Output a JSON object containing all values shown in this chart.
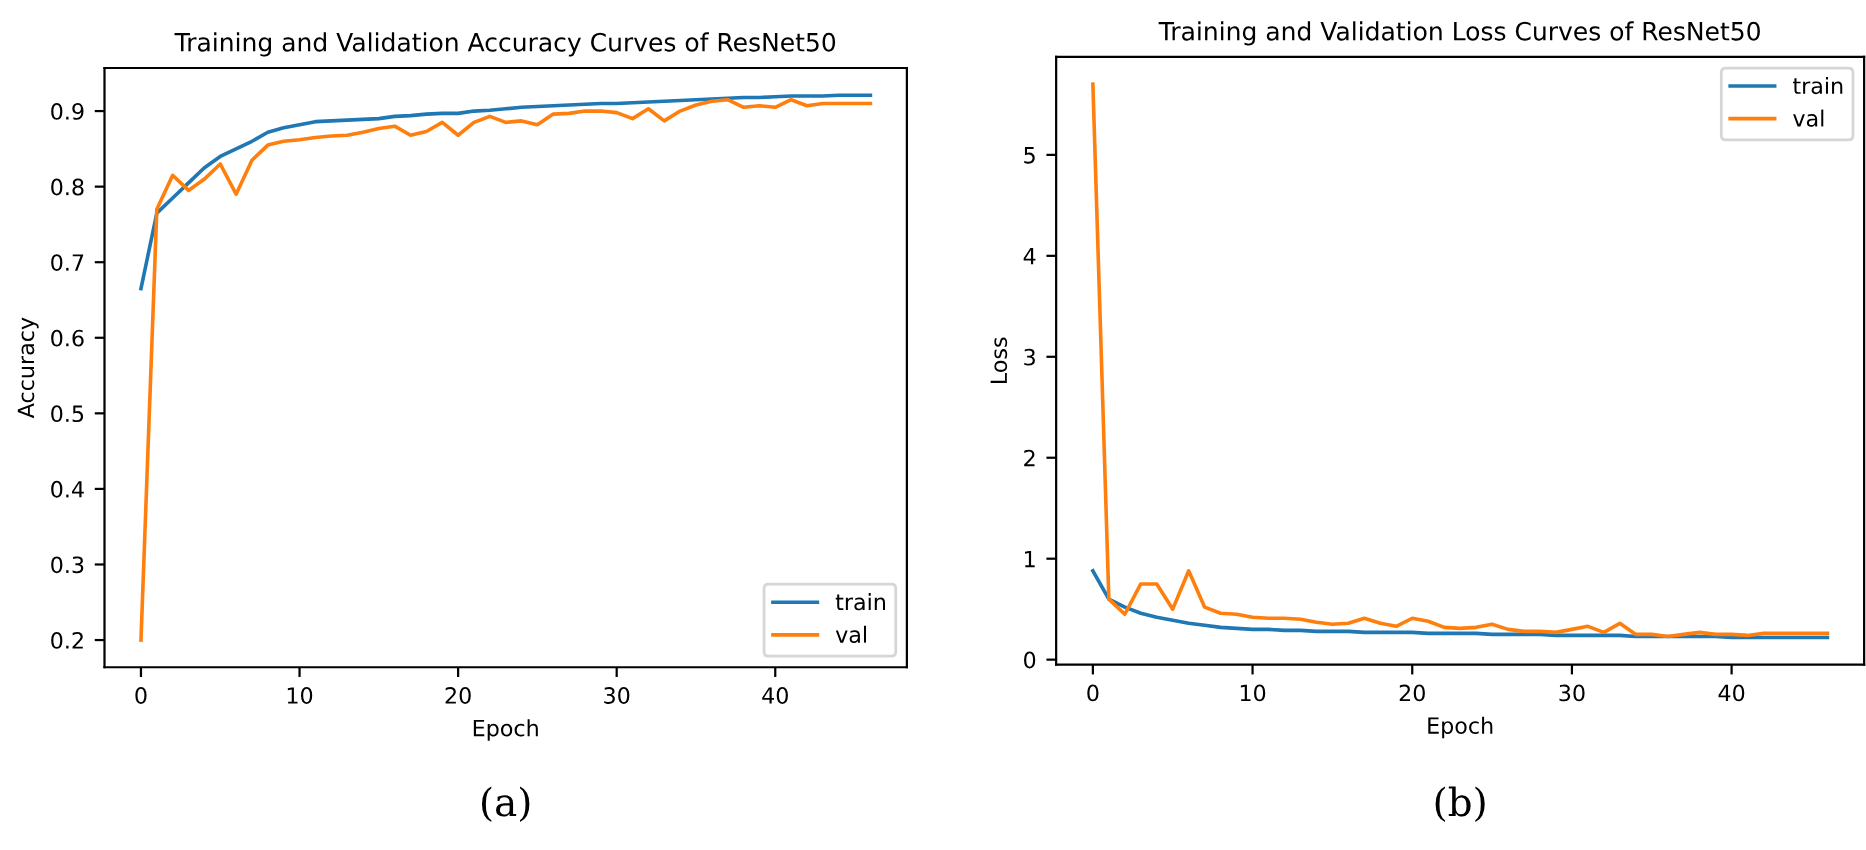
{
  "chart_data": [
    {
      "type": "line",
      "title": "Training and Validation Accuracy Curves of ResNet50",
      "xlabel": "Epoch",
      "ylabel": "Accuracy",
      "annotations": [
        "(a)"
      ],
      "x": [
        0,
        1,
        2,
        3,
        4,
        5,
        6,
        7,
        8,
        9,
        10,
        11,
        12,
        13,
        14,
        15,
        16,
        17,
        18,
        19,
        20,
        21,
        22,
        23,
        24,
        25,
        26,
        27,
        28,
        29,
        30,
        31,
        32,
        33,
        34,
        35,
        36,
        37,
        38,
        39,
        40,
        41,
        42,
        43,
        44,
        45,
        46
      ],
      "series": [
        {
          "name": "train",
          "color": "#1f77b4",
          "values": [
            0.665,
            0.765,
            0.785,
            0.805,
            0.825,
            0.84,
            0.85,
            0.86,
            0.872,
            0.878,
            0.882,
            0.886,
            0.887,
            0.888,
            0.889,
            0.89,
            0.893,
            0.894,
            0.896,
            0.897,
            0.897,
            0.9,
            0.901,
            0.903,
            0.905,
            0.906,
            0.907,
            0.908,
            0.909,
            0.91,
            0.91,
            0.911,
            0.912,
            0.913,
            0.914,
            0.915,
            0.916,
            0.917,
            0.918,
            0.918,
            0.919,
            0.92,
            0.92,
            0.92,
            0.921,
            0.921,
            0.921
          ]
        },
        {
          "name": "val",
          "color": "#ff7f0e",
          "values": [
            0.2,
            0.77,
            0.815,
            0.795,
            0.81,
            0.83,
            0.79,
            0.835,
            0.855,
            0.86,
            0.862,
            0.865,
            0.867,
            0.868,
            0.872,
            0.877,
            0.88,
            0.868,
            0.873,
            0.885,
            0.868,
            0.885,
            0.893,
            0.885,
            0.887,
            0.882,
            0.896,
            0.897,
            0.9,
            0.9,
            0.898,
            0.89,
            0.903,
            0.887,
            0.9,
            0.908,
            0.913,
            0.915,
            0.905,
            0.907,
            0.905,
            0.915,
            0.907,
            0.91,
            0.91,
            0.91,
            0.91
          ]
        }
      ],
      "xlim": [
        -2.3,
        48.3
      ],
      "xticks": [
        0,
        10,
        20,
        30,
        40
      ],
      "ylim": [
        0.164,
        0.957
      ],
      "yticks": [
        0.2,
        0.3,
        0.4,
        0.5,
        0.6,
        0.7,
        0.8,
        0.9
      ],
      "legend": "lower right",
      "grid": false
    },
    {
      "type": "line",
      "title": "Training and Validation Loss Curves of ResNet50",
      "xlabel": "Epoch",
      "ylabel": "Loss",
      "annotations": [
        "(b)"
      ],
      "x": [
        0,
        1,
        2,
        3,
        4,
        5,
        6,
        7,
        8,
        9,
        10,
        11,
        12,
        13,
        14,
        15,
        16,
        17,
        18,
        19,
        20,
        21,
        22,
        23,
        24,
        25,
        26,
        27,
        28,
        29,
        30,
        31,
        32,
        33,
        34,
        35,
        36,
        37,
        38,
        39,
        40,
        41,
        42,
        43,
        44,
        45,
        46
      ],
      "series": [
        {
          "name": "train",
          "color": "#1f77b4",
          "values": [
            0.88,
            0.6,
            0.52,
            0.46,
            0.42,
            0.39,
            0.36,
            0.34,
            0.32,
            0.31,
            0.3,
            0.3,
            0.29,
            0.29,
            0.28,
            0.28,
            0.28,
            0.27,
            0.27,
            0.27,
            0.27,
            0.26,
            0.26,
            0.26,
            0.26,
            0.25,
            0.25,
            0.25,
            0.25,
            0.24,
            0.24,
            0.24,
            0.24,
            0.24,
            0.23,
            0.23,
            0.23,
            0.23,
            0.23,
            0.23,
            0.22,
            0.22,
            0.22,
            0.22,
            0.22,
            0.22,
            0.22
          ]
        },
        {
          "name": "val",
          "color": "#ff7f0e",
          "values": [
            5.7,
            0.6,
            0.45,
            0.75,
            0.75,
            0.5,
            0.88,
            0.52,
            0.46,
            0.45,
            0.42,
            0.41,
            0.41,
            0.4,
            0.37,
            0.35,
            0.36,
            0.41,
            0.36,
            0.33,
            0.41,
            0.38,
            0.32,
            0.31,
            0.32,
            0.35,
            0.3,
            0.28,
            0.28,
            0.27,
            0.3,
            0.33,
            0.27,
            0.36,
            0.25,
            0.25,
            0.23,
            0.25,
            0.27,
            0.25,
            0.25,
            0.24,
            0.26,
            0.26,
            0.26,
            0.26,
            0.26
          ]
        }
      ],
      "xlim": [
        -2.3,
        48.3
      ],
      "xticks": [
        0,
        10,
        20,
        30,
        40
      ],
      "ylim": [
        -0.05,
        5.97
      ],
      "yticks": [
        0,
        1,
        2,
        3,
        4,
        5
      ],
      "legend": "upper right",
      "grid": false
    }
  ]
}
